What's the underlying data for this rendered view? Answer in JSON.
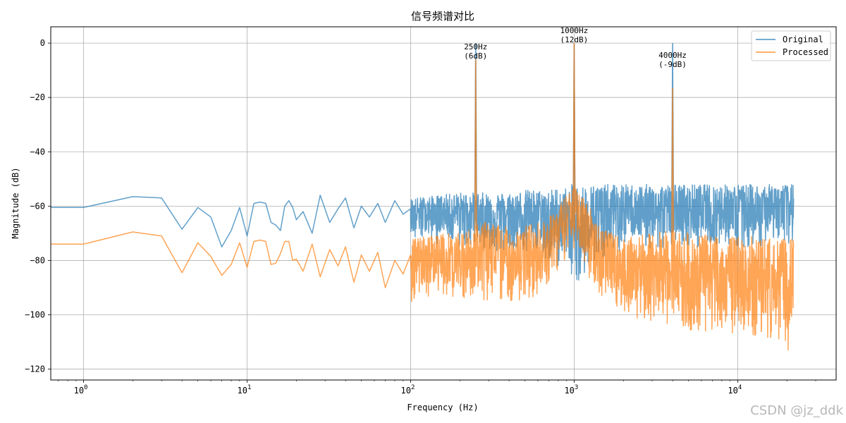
{
  "watermark": "CSDN @jz_ddk",
  "chart_data": {
    "type": "line",
    "title": "信号频谱对比",
    "xlabel": "Frequency (Hz)",
    "ylabel": "Magnitude (dB)",
    "xscale": "log",
    "xlim": [
      0.63,
      40000
    ],
    "ylim": [
      -124,
      6
    ],
    "grid": true,
    "legend_position": "top-right",
    "x_ticks": [
      {
        "value": 1,
        "base": "10",
        "exp": "0"
      },
      {
        "value": 10,
        "base": "10",
        "exp": "1"
      },
      {
        "value": 100,
        "base": "10",
        "exp": "2"
      },
      {
        "value": 1000,
        "base": "10",
        "exp": "3"
      },
      {
        "value": 10000,
        "base": "10",
        "exp": "4"
      }
    ],
    "y_ticks": [
      {
        "value": 0,
        "label": "0"
      },
      {
        "value": -20,
        "label": "−20"
      },
      {
        "value": -40,
        "label": "−40"
      },
      {
        "value": -60,
        "label": "−60"
      },
      {
        "value": -80,
        "label": "−80"
      },
      {
        "value": -100,
        "label": "−100"
      },
      {
        "value": -120,
        "label": "−120"
      }
    ],
    "series": [
      {
        "name": "Original",
        "color": "#1f77b4",
        "opacity": 0.7,
        "x": [
          0.63,
          1,
          2,
          3,
          4,
          5,
          6,
          7,
          8,
          9,
          10,
          11,
          12,
          13,
          14,
          15,
          16,
          17,
          18,
          19,
          20,
          22,
          25,
          28,
          32,
          36,
          40,
          45,
          50,
          56,
          63,
          70,
          80,
          90,
          100
        ],
        "y": [
          -60.5,
          -60.5,
          -56.5,
          -57,
          -68.5,
          -60.5,
          -64,
          -75,
          -69,
          -60.5,
          -71,
          -59,
          -58.5,
          -59,
          -66,
          -67,
          -69,
          -60,
          -58,
          -60.5,
          -65,
          -62,
          -70,
          -56,
          -66,
          -61,
          -57,
          -68,
          -60,
          -64,
          -59,
          -66,
          -58,
          -63,
          -61
        ],
        "band": [
          {
            "x": 100,
            "min": -74,
            "max": -57
          },
          {
            "x": 150,
            "min": -74,
            "max": -56
          },
          {
            "x": 200,
            "min": -75,
            "max": -55
          },
          {
            "x": 240,
            "min": -75,
            "max": -55
          },
          {
            "x": 300,
            "min": -76,
            "max": -55
          },
          {
            "x": 400,
            "min": -77,
            "max": -55
          },
          {
            "x": 500,
            "min": -77,
            "max": -54
          },
          {
            "x": 600,
            "min": -78,
            "max": -54
          },
          {
            "x": 700,
            "min": -80,
            "max": -54
          },
          {
            "x": 800,
            "min": -82,
            "max": -53
          },
          {
            "x": 900,
            "min": -85,
            "max": -53
          },
          {
            "x": 950,
            "min": -89,
            "max": -52
          },
          {
            "x": 1100,
            "min": -89,
            "max": -52
          },
          {
            "x": 1300,
            "min": -80,
            "max": -52
          },
          {
            "x": 2000,
            "min": -77,
            "max": -52
          },
          {
            "x": 3000,
            "min": -76,
            "max": -52
          },
          {
            "x": 5000,
            "min": -75,
            "max": -52
          },
          {
            "x": 8000,
            "min": -75,
            "max": -52
          },
          {
            "x": 12000,
            "min": -75,
            "max": -52
          },
          {
            "x": 18000,
            "min": -74,
            "max": -52
          },
          {
            "x": 22000,
            "min": -74,
            "max": -52
          }
        ],
        "peaks": [
          {
            "x": 250,
            "y": 0,
            "base": -60
          },
          {
            "x": 1000,
            "y": 0,
            "base": -60
          },
          {
            "x": 4000,
            "y": 0,
            "base": -60
          }
        ]
      },
      {
        "name": "Processed",
        "color": "#ff7f0e",
        "opacity": 0.7,
        "x": [
          0.63,
          1,
          2,
          3,
          4,
          5,
          6,
          7,
          8,
          9,
          10,
          11,
          12,
          13,
          14,
          15,
          16,
          17,
          18,
          19,
          20,
          22,
          25,
          28,
          32,
          36,
          40,
          45,
          50,
          56,
          63,
          70,
          80,
          90,
          100
        ],
        "y": [
          -74,
          -74,
          -69.5,
          -71,
          -84.5,
          -73.5,
          -78.5,
          -85.5,
          -81.5,
          -73.5,
          -82.5,
          -73,
          -72.5,
          -73,
          -81.5,
          -81,
          -77.5,
          -73,
          -73,
          -80,
          -79.5,
          -84,
          -74,
          -86,
          -76,
          -82,
          -75,
          -88,
          -78,
          -84,
          -77,
          -90,
          -80,
          -85,
          -78
        ],
        "band": [
          {
            "x": 100,
            "min": -97,
            "max": -72
          },
          {
            "x": 150,
            "min": -93,
            "max": -70
          },
          {
            "x": 200,
            "min": -94,
            "max": -70
          },
          {
            "x": 300,
            "min": -95,
            "max": -65
          },
          {
            "x": 400,
            "min": -95,
            "max": -68
          },
          {
            "x": 500,
            "min": -95,
            "max": -67
          },
          {
            "x": 600,
            "min": -93,
            "max": -66
          },
          {
            "x": 700,
            "min": -88,
            "max": -64
          },
          {
            "x": 800,
            "min": -84,
            "max": -60
          },
          {
            "x": 900,
            "min": -80,
            "max": -55
          },
          {
            "x": 1000,
            "min": -76,
            "max": -53
          },
          {
            "x": 1100,
            "min": -80,
            "max": -55
          },
          {
            "x": 1200,
            "min": -85,
            "max": -58
          },
          {
            "x": 1400,
            "min": -92,
            "max": -66
          },
          {
            "x": 1700,
            "min": -97,
            "max": -70
          },
          {
            "x": 2000,
            "min": -100,
            "max": -72
          },
          {
            "x": 3000,
            "min": -103,
            "max": -70
          },
          {
            "x": 4000,
            "min": -104,
            "max": -68
          },
          {
            "x": 5000,
            "min": -106,
            "max": -70
          },
          {
            "x": 8000,
            "min": -107,
            "max": -71
          },
          {
            "x": 12000,
            "min": -108,
            "max": -71
          },
          {
            "x": 18000,
            "min": -109,
            "max": -72
          },
          {
            "x": 22000,
            "min": -116,
            "max": -72
          }
        ],
        "peaks": [
          {
            "x": 250,
            "y": -6,
            "base": -75
          },
          {
            "x": 1000,
            "y": 0,
            "base": -60
          },
          {
            "x": 4000,
            "y": -16.5,
            "base": -75
          }
        ]
      }
    ],
    "annotations": [
      {
        "x": 250,
        "y": -6,
        "lines": [
          "250Hz",
          "(6dB)"
        ]
      },
      {
        "x": 1000,
        "y": 0,
        "lines": [
          "1000Hz",
          "(12dB)"
        ]
      },
      {
        "x": 4000,
        "y": -9,
        "lines": [
          "4000Hz",
          "(-9dB)"
        ]
      }
    ]
  }
}
